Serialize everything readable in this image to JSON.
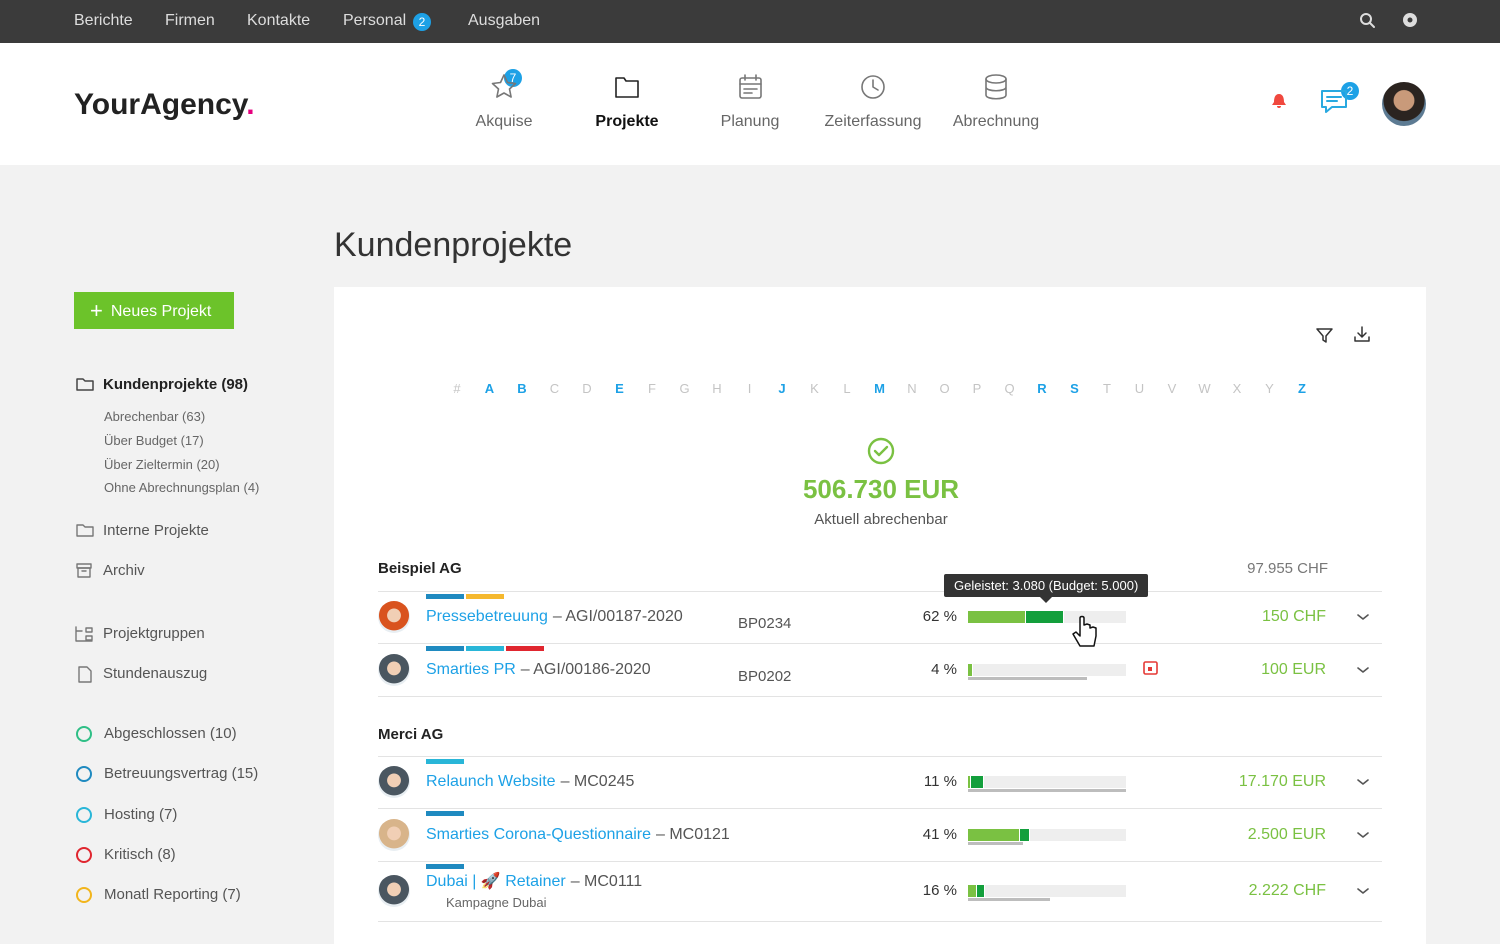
{
  "topnav": {
    "items": [
      {
        "label": "Berichte"
      },
      {
        "label": "Firmen"
      },
      {
        "label": "Kontakte"
      },
      {
        "label": "Personal",
        "badge": "2"
      },
      {
        "label": "Ausgaben"
      }
    ]
  },
  "header": {
    "logo": "YourAgency",
    "logo_dot": ".",
    "nav": [
      {
        "label": "Akquise",
        "badge": "7"
      },
      {
        "label": "Projekte",
        "active": true
      },
      {
        "label": "Planung"
      },
      {
        "label": "Zeiterfassung"
      },
      {
        "label": "Abrechnung"
      }
    ],
    "messages_badge": "2"
  },
  "page_title": "Kundenprojekte",
  "sidebar": {
    "new_button": "Neues Projekt",
    "current": {
      "label": "Kundenprojekte (98)",
      "filters": [
        "Abrechenbar (63)",
        "Über Budget (17)",
        "Über Zieltermin (20)",
        "Ohne Abrechnungsplan (4)"
      ]
    },
    "links": [
      "Interne Projekte",
      "Archiv",
      "Projektgruppen",
      "Stundenauszug"
    ],
    "statuses": [
      {
        "label": "Abgeschlossen (10)",
        "color": "#2fbf86"
      },
      {
        "label": "Betreuungsvertrag (15)",
        "color": "#1f8ac0"
      },
      {
        "label": "Hosting (7)",
        "color": "#29b6d8"
      },
      {
        "label": "Kritisch (8)",
        "color": "#e0262f"
      },
      {
        "label": "Monatl Reporting (7)",
        "color": "#f2b51c"
      }
    ]
  },
  "alphabet": [
    {
      "label": "#"
    },
    {
      "label": "A",
      "active": true
    },
    {
      "label": "B",
      "active": true
    },
    {
      "label": "C"
    },
    {
      "label": "D"
    },
    {
      "label": "E",
      "active": true
    },
    {
      "label": "F"
    },
    {
      "label": "G"
    },
    {
      "label": "H"
    },
    {
      "label": "I"
    },
    {
      "label": "J",
      "active": true
    },
    {
      "label": "K"
    },
    {
      "label": "L"
    },
    {
      "label": "M",
      "active": true
    },
    {
      "label": "N"
    },
    {
      "label": "O"
    },
    {
      "label": "P"
    },
    {
      "label": "Q"
    },
    {
      "label": "R",
      "active": true
    },
    {
      "label": "S",
      "active": true
    },
    {
      "label": "T"
    },
    {
      "label": "U"
    },
    {
      "label": "V"
    },
    {
      "label": "W"
    },
    {
      "label": "X"
    },
    {
      "label": "Y"
    },
    {
      "label": "Z",
      "active": true
    }
  ],
  "summary": {
    "amount": "506.730 EUR",
    "caption": "Aktuell abrechenbar"
  },
  "tooltip": "Geleistet: 3.080 (Budget: 5.000)",
  "groups": [
    {
      "name": "Beispiel AG",
      "total": "97.955 CHF",
      "projects": [
        {
          "name": "Pressebetreuung",
          "ref": "– AGI/00187-2020",
          "code": "BP0234",
          "percent": "62 %",
          "segments": [
            37,
            24
          ],
          "amount": "150 CHF",
          "tags": [
            "#1f8ac0",
            "#f5b82e"
          ],
          "avatar": "#d9531e"
        },
        {
          "name": "Smarties PR",
          "ref": "– AGI/00186-2020",
          "code": "BP0202",
          "percent": "4 %",
          "segments": [
            3
          ],
          "timeline": 75,
          "overdue": true,
          "amount": "100 EUR",
          "tags": [
            "#1f8ac0",
            "#29b6d8",
            "#e0262f"
          ],
          "avatar": "#4a5660"
        }
      ]
    },
    {
      "name": "Merci AG",
      "projects": [
        {
          "name": "Relaunch Website",
          "ref": "– MC0245",
          "percent": "11 %",
          "segments": [
            2,
            8
          ],
          "timeline": 100,
          "amount": "17.170 EUR",
          "tags": [
            "#29b6d8"
          ],
          "avatar": "#4a5660"
        },
        {
          "name": "Smarties Corona-Questionnaire",
          "ref": "– MC0121",
          "percent": "41 %",
          "segments": [
            33,
            6
          ],
          "timeline": 35,
          "amount": "2.500 EUR",
          "tags": [
            "#1f8ac0"
          ],
          "avatar": "#d8b48a"
        },
        {
          "name": "Dubai | 🚀 Retainer",
          "ref": "– MC0111",
          "subgroup": "Kampagne Dubai",
          "percent": "16 %",
          "segments": [
            6,
            5
          ],
          "timeline": 52,
          "amount": "2.222 CHF",
          "tags": [
            "#1f8ac0"
          ],
          "avatar": "#4a5660"
        }
      ]
    }
  ]
}
